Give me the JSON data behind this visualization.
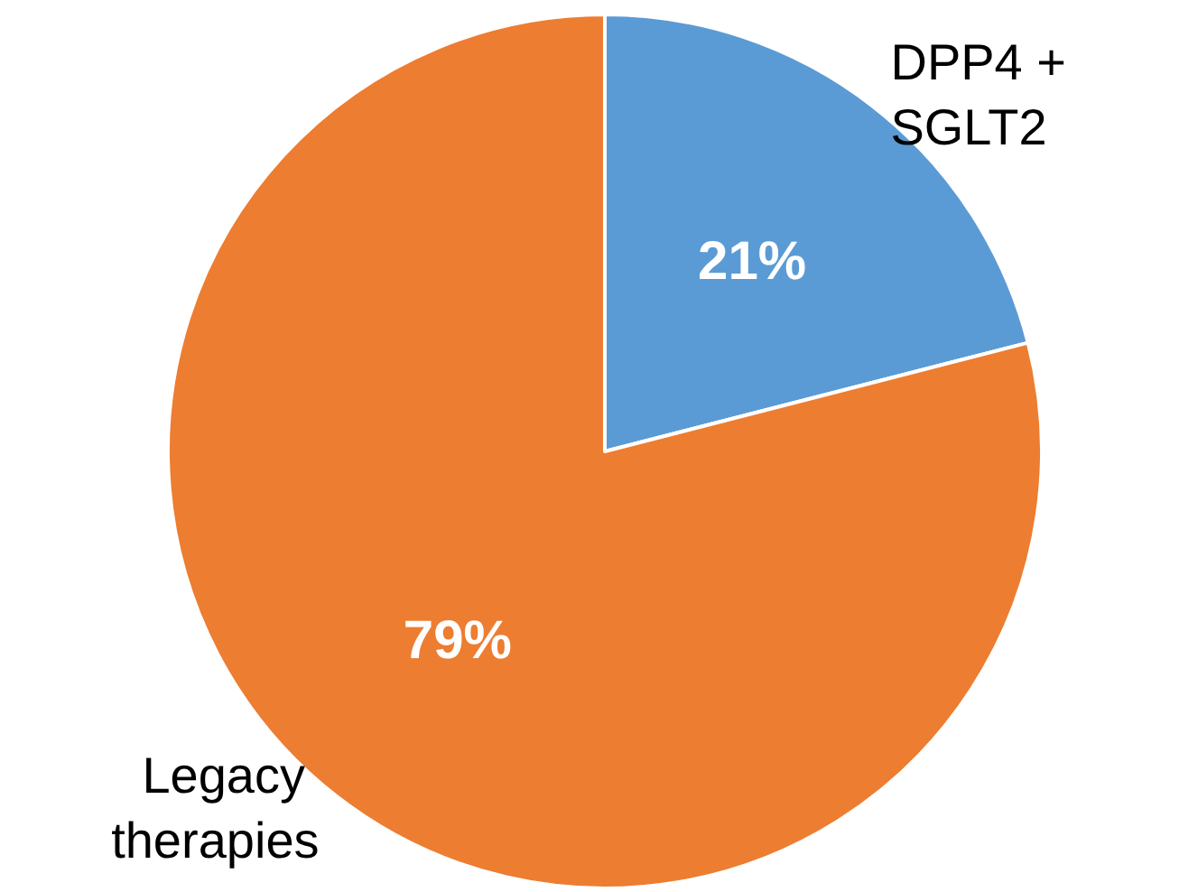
{
  "chart_data": {
    "type": "pie",
    "categories": [
      "DPP4 + SGLT2",
      "Legacy therapies"
    ],
    "values": [
      21,
      79
    ],
    "colors": [
      "#5b9bd5",
      "#ed7d31"
    ],
    "value_labels": [
      "21%",
      "79%"
    ]
  }
}
